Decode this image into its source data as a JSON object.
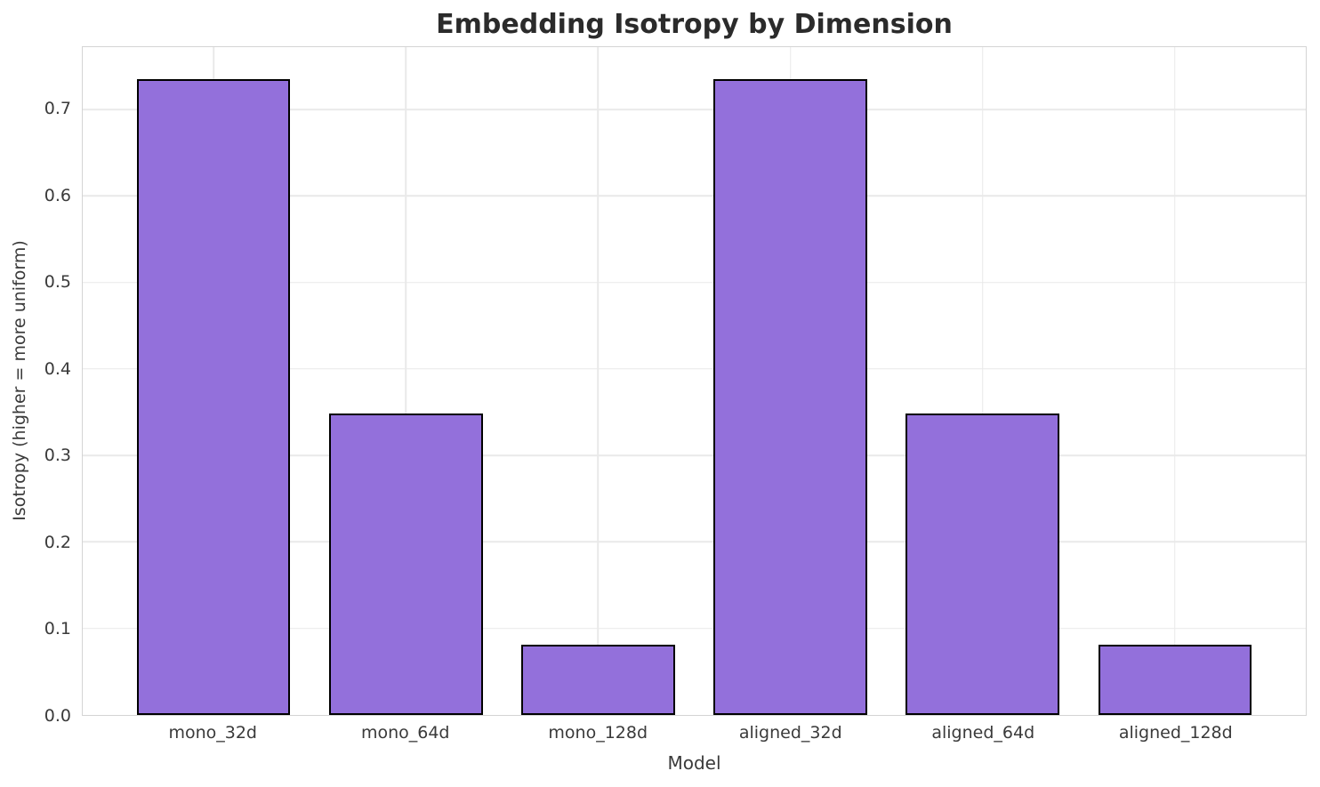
{
  "chart_data": {
    "type": "bar",
    "title": "Embedding Isotropy by Dimension",
    "xlabel": "Model",
    "ylabel": "Isotropy (higher = more uniform)",
    "categories": [
      "mono_32d",
      "mono_64d",
      "mono_128d",
      "aligned_32d",
      "aligned_64d",
      "aligned_128d"
    ],
    "values": [
      0.735,
      0.349,
      0.081,
      0.735,
      0.349,
      0.081
    ],
    "yticks": [
      0.0,
      0.1,
      0.2,
      0.3,
      0.4,
      0.5,
      0.6,
      0.7
    ],
    "ytick_labels": [
      "0.0",
      "0.1",
      "0.2",
      "0.3",
      "0.4",
      "0.5",
      "0.6",
      "0.7"
    ],
    "ylim": [
      0,
      0.772
    ],
    "xlim": [
      -0.68,
      5.68
    ],
    "bar_width": 0.8,
    "grid": true,
    "legend": "none",
    "colors": {
      "bar_fill": "#9370DB",
      "bar_edge": "#000000",
      "grid": "#e9e9e9",
      "spine": "#d4d4d4",
      "title": "#2b2b2b",
      "text": "#3a3a3a"
    }
  }
}
